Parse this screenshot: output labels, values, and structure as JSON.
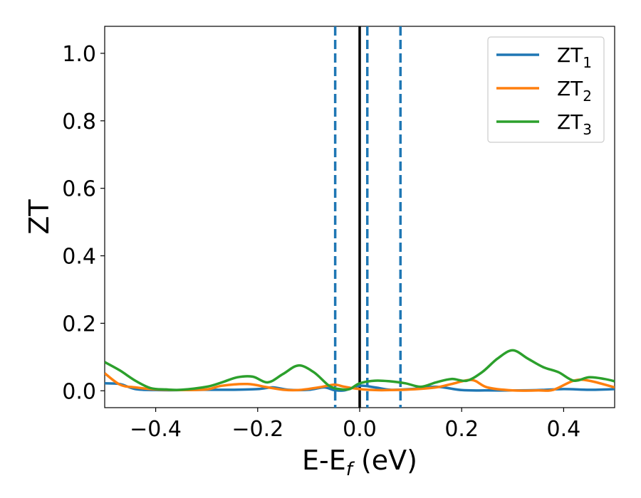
{
  "chart_data": {
    "type": "line",
    "xlabel_main": "E-E",
    "xlabel_sub": "f",
    "xlabel_unit": " (eV)",
    "ylabel": "ZT",
    "xlim": [
      -0.5,
      0.5
    ],
    "ylim": [
      -0.05,
      1.08
    ],
    "xticks": [
      -0.4,
      -0.2,
      0.0,
      0.2,
      0.4
    ],
    "xtick_labels": [
      "−0.4",
      "−0.2",
      "0.0",
      "0.2",
      "0.4"
    ],
    "yticks": [
      0.0,
      0.2,
      0.4,
      0.6,
      0.8,
      1.0
    ],
    "ytick_labels": [
      "0.0",
      "0.2",
      "0.4",
      "0.6",
      "0.8",
      "1.0"
    ],
    "legend_position": "top-right",
    "vlines": [
      {
        "x": 0.0,
        "style": "solid",
        "color": "#000000"
      },
      {
        "x": -0.048,
        "style": "dashed",
        "color": "#1f77b4"
      },
      {
        "x": 0.015,
        "style": "dashed",
        "color": "#1f77b4"
      },
      {
        "x": 0.08,
        "style": "dashed",
        "color": "#1f77b4"
      }
    ],
    "series": [
      {
        "name_main": "ZT",
        "name_sub": "1",
        "color": "#1f77b4",
        "x": [
          -0.5,
          -0.47,
          -0.44,
          -0.4,
          -0.35,
          -0.3,
          -0.25,
          -0.2,
          -0.17,
          -0.14,
          -0.1,
          -0.07,
          -0.05,
          -0.03,
          0.0,
          0.03,
          0.06,
          0.1,
          0.15,
          0.2,
          0.25,
          0.3,
          0.35,
          0.4,
          0.45,
          0.5
        ],
        "y": [
          0.022,
          0.02,
          0.005,
          0.002,
          0.002,
          0.003,
          0.003,
          0.005,
          0.01,
          0.003,
          0.003,
          0.01,
          0.002,
          0.001,
          0.015,
          0.01,
          0.003,
          0.005,
          0.012,
          0.002,
          0.001,
          0.001,
          0.002,
          0.005,
          0.003,
          0.005
        ]
      },
      {
        "name_main": "ZT",
        "name_sub": "2",
        "color": "#ff7f0e",
        "x": [
          -0.5,
          -0.47,
          -0.44,
          -0.4,
          -0.35,
          -0.3,
          -0.27,
          -0.22,
          -0.18,
          -0.15,
          -0.12,
          -0.08,
          -0.05,
          -0.03,
          0.0,
          0.03,
          0.06,
          0.1,
          0.15,
          0.18,
          0.22,
          0.25,
          0.3,
          0.35,
          0.38,
          0.42,
          0.45,
          0.5
        ],
        "y": [
          0.052,
          0.018,
          0.01,
          0.004,
          0.002,
          0.004,
          0.015,
          0.02,
          0.01,
          0.003,
          0.002,
          0.01,
          0.018,
          0.012,
          0.005,
          0.002,
          0.002,
          0.004,
          0.01,
          0.02,
          0.032,
          0.01,
          0.001,
          0.001,
          0.003,
          0.03,
          0.03,
          0.01
        ]
      },
      {
        "name_main": "ZT",
        "name_sub": "3",
        "color": "#2ca02c",
        "x": [
          -0.5,
          -0.47,
          -0.44,
          -0.41,
          -0.38,
          -0.35,
          -0.3,
          -0.27,
          -0.24,
          -0.21,
          -0.18,
          -0.15,
          -0.12,
          -0.09,
          -0.06,
          -0.04,
          -0.02,
          0.0,
          0.03,
          0.06,
          0.09,
          0.12,
          0.15,
          0.18,
          0.21,
          0.24,
          0.27,
          0.3,
          0.33,
          0.36,
          0.39,
          0.42,
          0.45,
          0.48,
          0.5
        ],
        "y": [
          0.085,
          0.06,
          0.03,
          0.008,
          0.004,
          0.003,
          0.012,
          0.025,
          0.04,
          0.042,
          0.025,
          0.05,
          0.075,
          0.055,
          0.015,
          0.005,
          0.005,
          0.022,
          0.03,
          0.028,
          0.022,
          0.012,
          0.025,
          0.035,
          0.03,
          0.055,
          0.095,
          0.12,
          0.095,
          0.07,
          0.055,
          0.03,
          0.04,
          0.035,
          0.028
        ]
      }
    ]
  }
}
